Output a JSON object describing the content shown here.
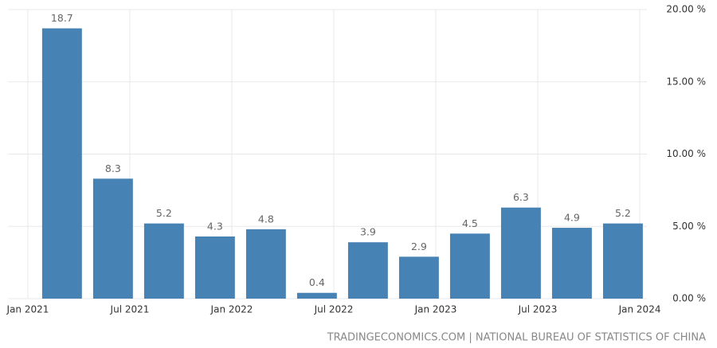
{
  "chart_data": {
    "type": "bar",
    "categories": [
      null,
      null,
      null,
      null,
      null,
      null,
      null,
      null,
      null,
      null,
      null,
      null
    ],
    "values": [
      18.7,
      8.3,
      5.2,
      4.3,
      4.8,
      0.4,
      3.9,
      2.9,
      4.5,
      6.3,
      4.9,
      5.2
    ],
    "color": "#4682b4",
    "xlim": [
      -1.06,
      11.47
    ],
    "xticks": [
      {
        "value": -0.67,
        "label": "Jan 2021"
      },
      {
        "value": 1.33,
        "label": "Jul 2021"
      },
      {
        "value": 3.33,
        "label": "Jan 2022"
      },
      {
        "value": 5.33,
        "label": "Jul 2022"
      },
      {
        "value": 7.33,
        "label": "Jan 2023"
      },
      {
        "value": 9.33,
        "label": "Jul 2023"
      },
      {
        "value": 11.33,
        "label": "Jan 2024"
      }
    ],
    "ylim": [
      0,
      20
    ],
    "yticks": [
      {
        "value": 0,
        "label": "0.00 %"
      },
      {
        "value": 5,
        "label": "5.00 %"
      },
      {
        "value": 10,
        "label": "10.00 %"
      },
      {
        "value": 15,
        "label": "15.00 %"
      },
      {
        "value": 20,
        "label": "20.00 %"
      }
    ],
    "grid": true,
    "source": "TRADINGECONOMICS.COM | NATIONAL BUREAU OF STATISTICS OF CHINA"
  }
}
